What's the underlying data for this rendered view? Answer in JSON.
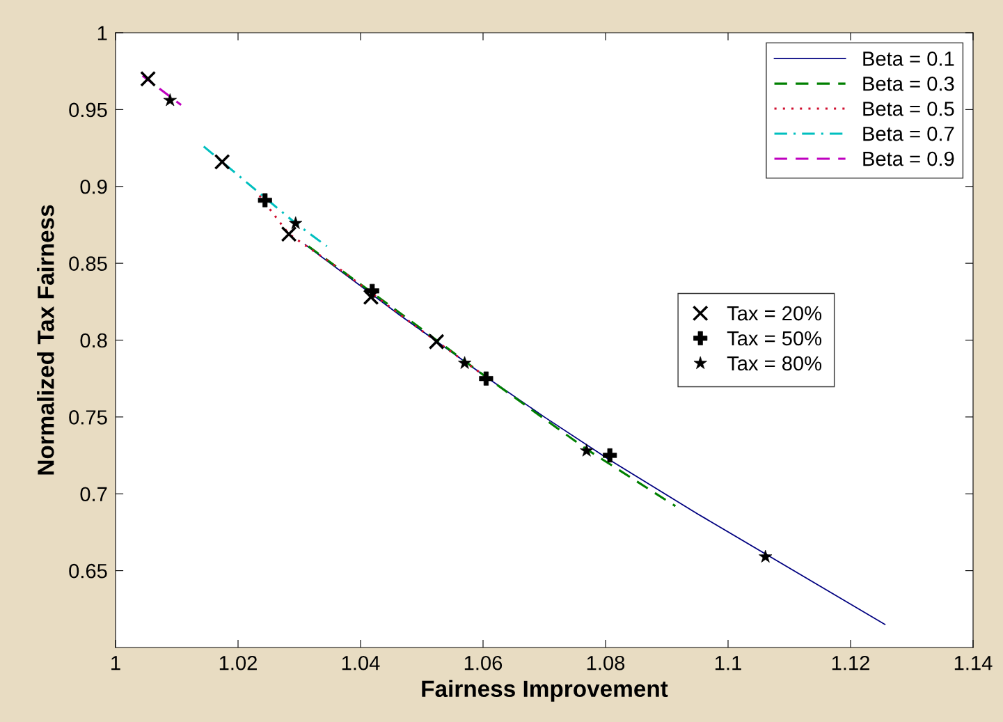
{
  "chart_data": {
    "type": "line",
    "xlabel": "Fairness Improvement",
    "ylabel": "Normalized Tax Fairness",
    "xlim": [
      1,
      1.14
    ],
    "xticks": [
      1,
      1.02,
      1.04,
      1.06,
      1.08,
      1.1,
      1.12,
      1.14
    ],
    "ylim": [
      0.6,
      1
    ],
    "yticks": [
      0.65,
      0.7,
      0.75,
      0.8,
      0.85,
      0.9,
      0.95,
      1
    ],
    "grid": false,
    "legend": "top right",
    "series": [
      {
        "name": "Beta = 0.1",
        "color": "#000080",
        "line_style": "solid",
        "x": [
          1.031,
          1.0465,
          1.0525,
          1.0605,
          1.07,
          1.0807,
          1.095,
          1.1256
        ],
        "values": [
          0.862,
          0.816,
          0.799,
          0.776,
          0.75,
          0.722,
          0.687,
          0.615
        ]
      },
      {
        "name": "Beta = 0.3",
        "color": "#008000",
        "line_style": "dashed",
        "x": [
          1.0315,
          1.047,
          1.0605,
          1.0769,
          1.0914
        ],
        "values": [
          0.861,
          0.816,
          0.776,
          0.729,
          0.692
        ]
      },
      {
        "name": "Beta = 0.5",
        "color": "#d01030",
        "line_style": "dotted",
        "x": [
          1.0235,
          1.0283,
          1.036,
          1.049,
          1.0605
        ],
        "values": [
          0.894,
          0.869,
          0.848,
          0.809,
          0.776
        ]
      },
      {
        "name": "Beta = 0.7",
        "color": "#00bfbf",
        "line_style": "dashdot",
        "x": [
          1.0144,
          1.0174,
          1.0294,
          1.0345
        ],
        "values": [
          0.926,
          0.916,
          0.876,
          0.861
        ]
      },
      {
        "name": "Beta = 0.9",
        "color": "#bf00bf",
        "line_style": "dashed",
        "x": [
          1.0044,
          1.0107
        ],
        "values": [
          0.972,
          0.953
        ]
      },
      {
        "name": "Tax = 20%",
        "type": "scatter",
        "marker": "cross",
        "color": "#000000",
        "x": [
          1.0053,
          1.0174,
          1.0283,
          1.0417,
          1.0524
        ],
        "values": [
          0.97,
          0.916,
          0.869,
          0.828,
          0.799
        ]
      },
      {
        "name": "Tax = 50%",
        "type": "scatter",
        "marker": "plus",
        "color": "#000000",
        "x": [
          1.0244,
          1.0419,
          1.0605,
          1.0807
        ],
        "values": [
          0.891,
          0.832,
          0.775,
          0.725
        ]
      },
      {
        "name": "Tax = 80%",
        "type": "scatter",
        "marker": "star",
        "color": "#000000",
        "x": [
          1.0089,
          1.0294,
          1.057,
          1.0769,
          1.1061
        ],
        "values": [
          0.956,
          0.876,
          0.785,
          0.728,
          0.659
        ]
      }
    ]
  }
}
